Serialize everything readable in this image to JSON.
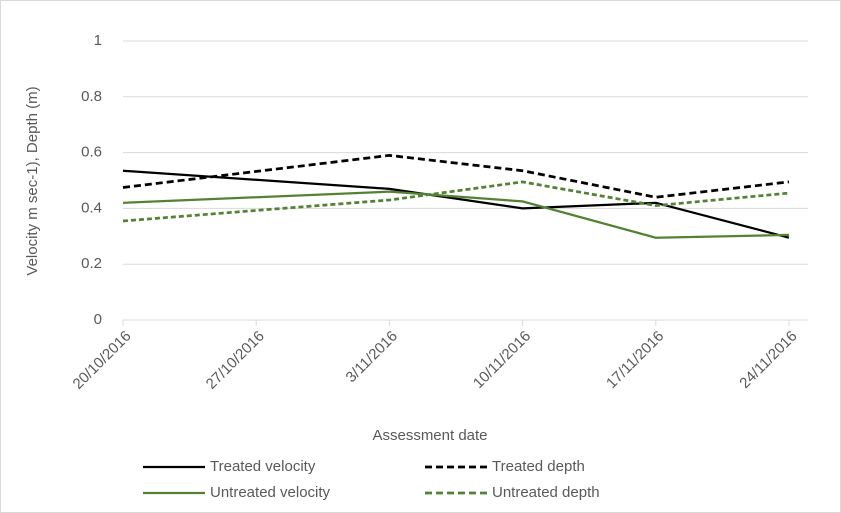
{
  "chart_data": {
    "type": "line",
    "ylabel": "Velocity m sec-1), Depth (m)",
    "xlabel": "Assessment date",
    "x": [
      "2016-10-20",
      "2016-11-03",
      "2016-11-10",
      "2016-11-17",
      "2016-11-24"
    ],
    "xlim": [
      "2016-10-20",
      "2016-11-25"
    ],
    "xticks": [
      {
        "value": "2016-10-20",
        "label": "20/10/2016"
      },
      {
        "value": "2016-10-27",
        "label": "27/10/2016"
      },
      {
        "value": "2016-11-03",
        "label": "3/11/2016"
      },
      {
        "value": "2016-11-10",
        "label": "10/11/2016"
      },
      {
        "value": "2016-11-17",
        "label": "17/11/2016"
      },
      {
        "value": "2016-11-24",
        "label": "24/11/2016"
      }
    ],
    "ylim": [
      0,
      1
    ],
    "yticks": [
      0,
      0.2,
      0.4,
      0.6,
      0.8,
      1
    ],
    "grid": true,
    "legend": "bottom",
    "series": [
      {
        "name": "Treated velocity",
        "color": "#000000",
        "dashed": false,
        "values": [
          0.535,
          0.47,
          0.4,
          0.42,
          0.295
        ]
      },
      {
        "name": "Treated depth",
        "color": "#000000",
        "dashed": true,
        "values": [
          0.475,
          0.59,
          0.535,
          0.44,
          0.495
        ]
      },
      {
        "name": "Untreated velocity",
        "color": "#548235",
        "dashed": false,
        "values": [
          0.42,
          0.46,
          0.425,
          0.295,
          0.305
        ]
      },
      {
        "name": "Untreated depth",
        "color": "#548235",
        "dashed": true,
        "values": [
          0.355,
          0.43,
          0.495,
          0.41,
          0.455
        ]
      }
    ]
  }
}
